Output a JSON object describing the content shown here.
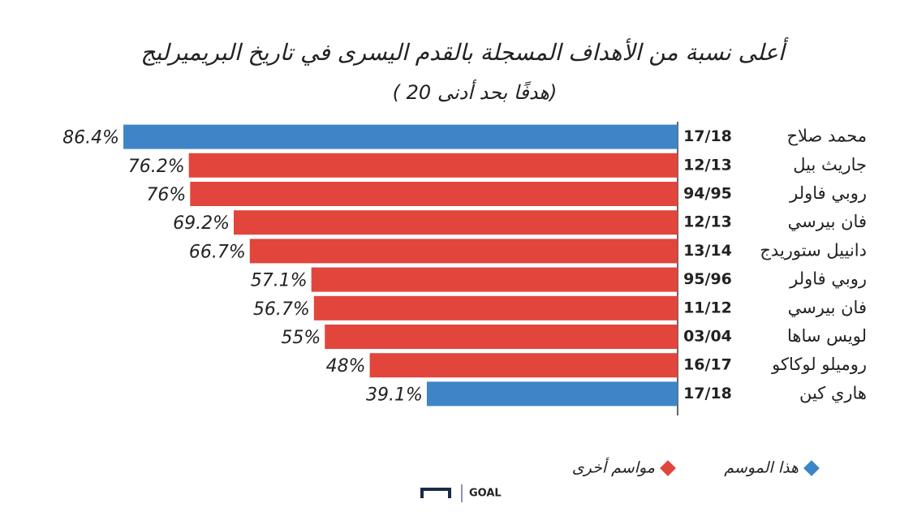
{
  "chart_data": {
    "type": "bar",
    "horizontal": true,
    "reversed": true,
    "title": "أعلى نسبة من الأهداف المسجلة بالقدم اليسرى في تاريخ البريميرليج",
    "subtitle": "( 20 هدفًا بحد أدنى)",
    "categories": [
      "محمد صلاح",
      "جاريث بيل",
      "روبي فاولر",
      "فان بيرسي",
      "دانييل ستوريدج",
      "روبي فاولر",
      "فان بيرسي",
      "لويس ساها",
      "روميلو لوكاكو",
      "هاري كين"
    ],
    "seasons": [
      "17/18",
      "12/13",
      "94/95",
      "12/13",
      "13/14",
      "95/96",
      "11/12",
      "03/04",
      "16/17",
      "17/18"
    ],
    "series": [
      {
        "name": "هذا الموسم",
        "color": "#3d85c6",
        "values": [
          86.4,
          null,
          null,
          null,
          null,
          null,
          null,
          null,
          null,
          39.1
        ],
        "value_labels": [
          "86.4%",
          null,
          null,
          null,
          null,
          null,
          null,
          null,
          null,
          "39.1%"
        ]
      },
      {
        "name": "مواسم أخرى",
        "color": "#e2453c",
        "values": [
          null,
          76.2,
          76,
          69.2,
          66.7,
          57.1,
          56.7,
          55,
          48,
          null
        ],
        "value_labels": [
          null,
          "76.2%",
          "76%",
          "69.2%",
          "66.7%",
          "57.1%",
          "56.7%",
          "55%",
          "48%",
          null
        ]
      }
    ],
    "xlim": [
      0,
      90
    ],
    "brand": "GOAL"
  }
}
